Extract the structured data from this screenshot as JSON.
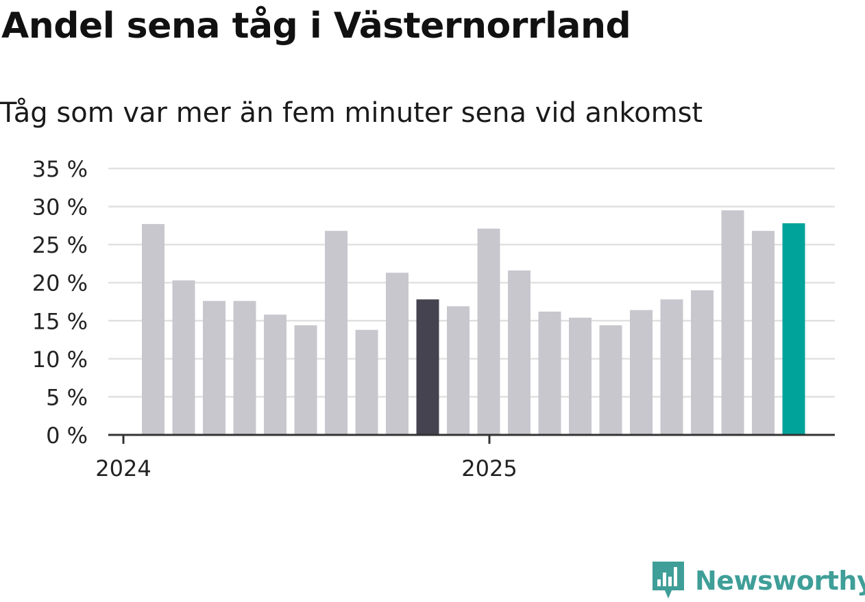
{
  "title": "Andel sena tåg i Västernorrland",
  "subtitle": "Tåg som var mer än fem minuter sena vid ankomst",
  "brand": "Newsworthy",
  "colors": {
    "default_bar": "#c8c7ce",
    "highlight_bar": "#45434f",
    "latest_bar": "#00a39a",
    "gridline": "#e1e1e1",
    "axis": "#333333",
    "brand": "#3f9e98"
  },
  "chart_data": {
    "type": "bar",
    "title": "Andel sena tåg i Västernorrland",
    "subtitle": "Tåg som var mer än fem minuter sena vid ankomst",
    "xlabel": "",
    "ylabel": "",
    "ylim": [
      0,
      35
    ],
    "yticks": [
      0,
      5,
      10,
      15,
      20,
      25,
      30,
      35
    ],
    "ytick_labels": [
      "0 %",
      "5 %",
      "10 %",
      "15 %",
      "20 %",
      "25 %",
      "30 %",
      "35 %"
    ],
    "xtick_labels": [
      {
        "label": "2024",
        "at_index": 0
      },
      {
        "label": "2025",
        "at_index": 12
      }
    ],
    "grid": true,
    "values": [
      27.7,
      20.3,
      17.6,
      17.6,
      15.8,
      14.4,
      26.8,
      13.8,
      21.3,
      17.8,
      16.9,
      27.1,
      21.6,
      16.2,
      15.4,
      14.4,
      16.4,
      17.8,
      19.0,
      29.5,
      26.8,
      27.8
    ],
    "highlight_index": 9,
    "latest_index": 21
  }
}
